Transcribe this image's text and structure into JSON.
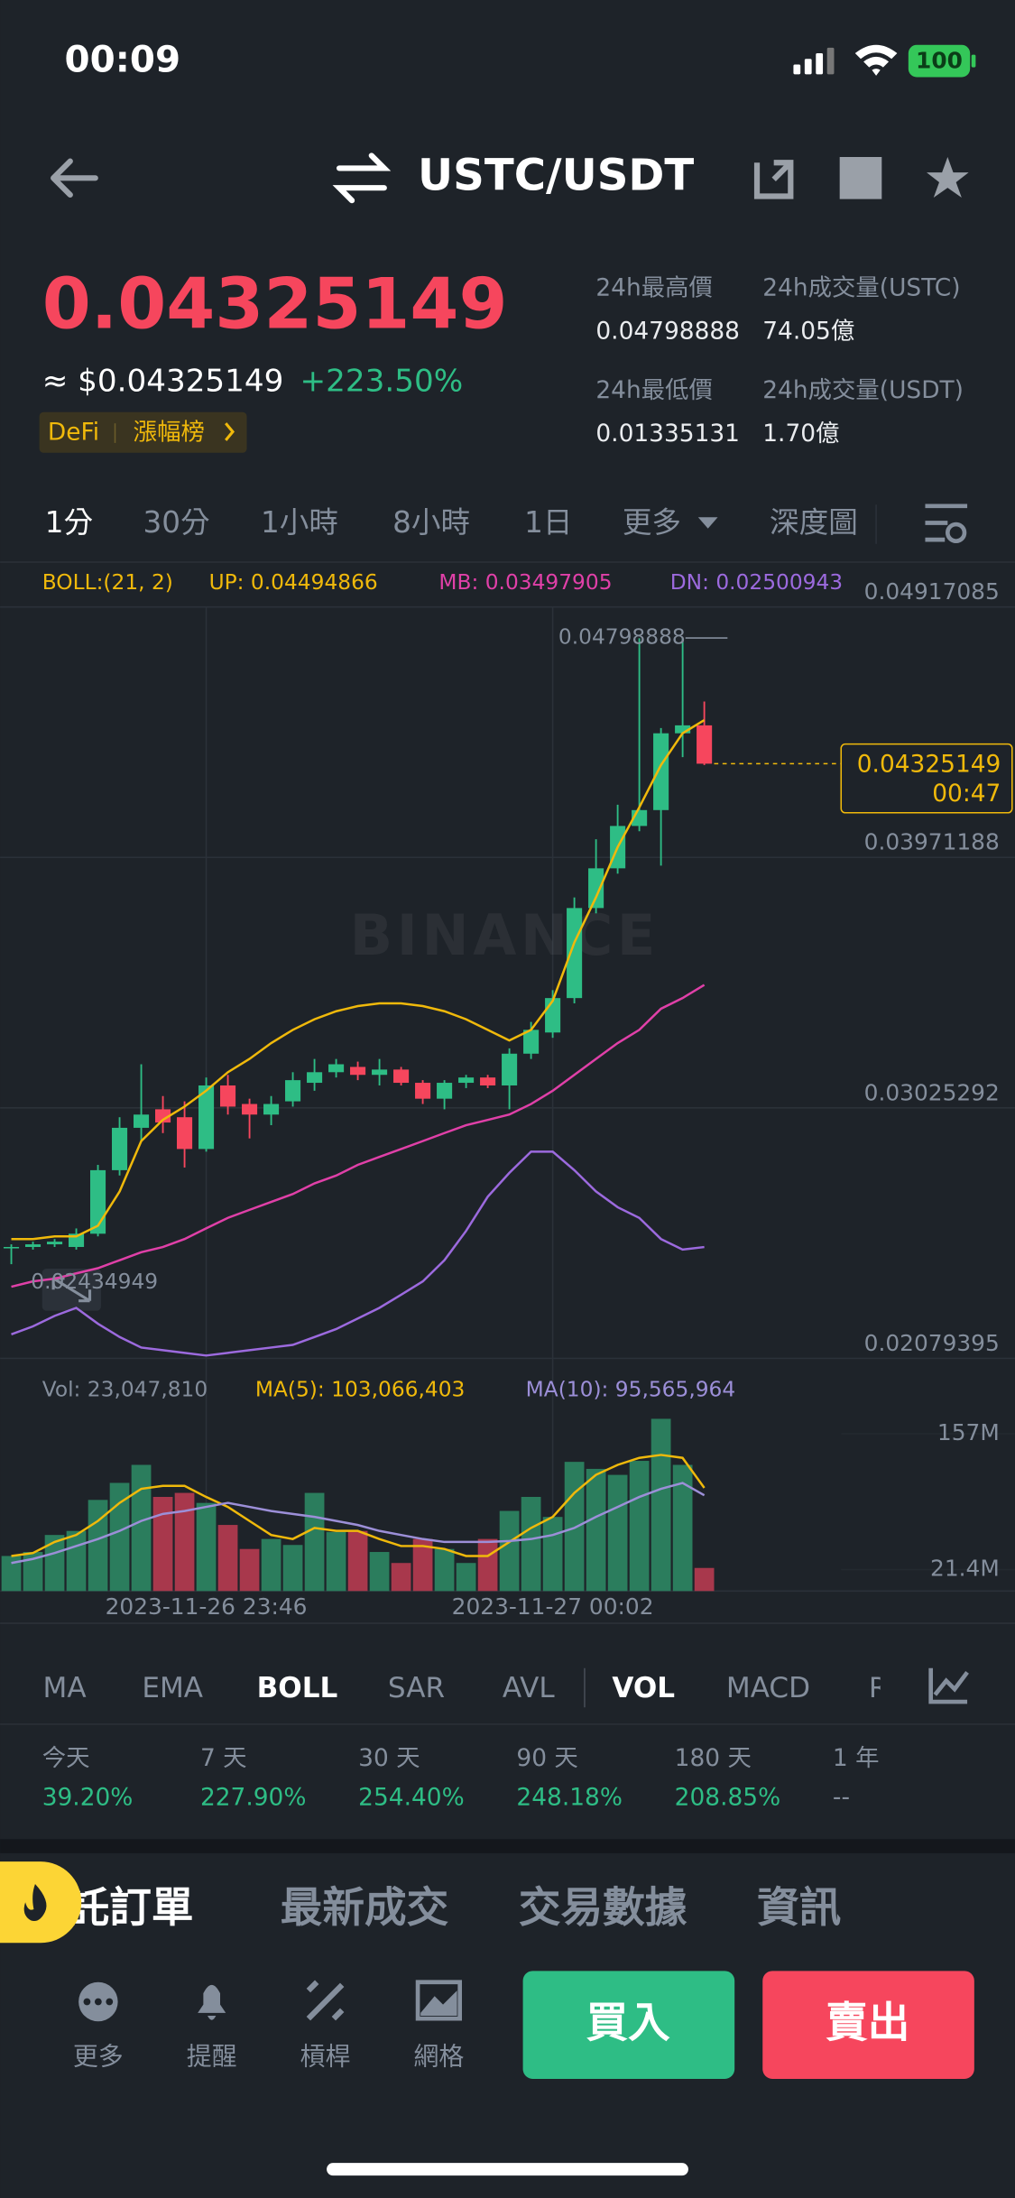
{
  "status_bar": {
    "time": "00:09",
    "battery": "100"
  },
  "header": {
    "pair": "USTC/USDT"
  },
  "ticker": {
    "price": "0.04325149",
    "fiat": "≈ $0.04325149",
    "change": "+223.50%",
    "tags": [
      "DeFi",
      "漲幅榜"
    ]
  },
  "stats": {
    "high_label": "24h最高價",
    "high": "0.04798888",
    "vol_base_label": "24h成交量(USTC)",
    "vol_base": "74.05億",
    "low_label": "24h最低價",
    "low": "0.01335131",
    "vol_quote_label": "24h成交量(USDT)",
    "vol_quote": "1.70億"
  },
  "intervals": [
    "1分",
    "30分",
    "1小時",
    "8小時",
    "1日",
    "更多",
    "深度圖"
  ],
  "chart_data": [
    {
      "type": "candlestick",
      "title": "BOLL:(21, 2)",
      "watermark": "BINANCE",
      "categories": [
        null,
        null,
        null,
        null,
        null,
        null,
        null,
        null,
        null,
        "2023-11-26 23:46",
        null,
        null,
        null,
        null,
        null,
        null,
        null,
        null,
        null,
        null,
        null,
        null,
        null,
        null,
        null,
        "2023-11-27 00:02",
        null,
        null,
        null,
        null,
        null,
        null,
        null
      ],
      "open": [
        0.02495,
        0.025,
        0.0251,
        0.025,
        0.0255,
        0.0279,
        0.0295,
        0.0302,
        0.0299,
        0.0287,
        0.0311,
        0.0304,
        0.03,
        0.0305,
        0.0312,
        0.0316,
        0.0318,
        0.0315,
        0.0317,
        0.0312,
        0.0306,
        0.0312,
        0.0314,
        0.0311,
        0.0323,
        0.0331,
        0.0344,
        0.0378,
        0.0393,
        0.0409,
        0.0415,
        0.0444,
        0.0447
      ],
      "high": [
        0.0251,
        0.0252,
        0.0253,
        0.0257,
        0.0281,
        0.0299,
        0.0319,
        0.0307,
        0.0305,
        0.0314,
        0.0315,
        0.0306,
        0.0307,
        0.0316,
        0.0321,
        0.0321,
        0.032,
        0.0321,
        0.0318,
        0.0313,
        0.0313,
        0.0315,
        0.0315,
        0.0325,
        0.0335,
        0.0347,
        0.0382,
        0.0404,
        0.0417,
        0.04798888,
        0.0446,
        0.048,
        0.0456
      ],
      "low": [
        0.02434949,
        0.0249,
        0.025,
        0.0249,
        0.0254,
        0.0277,
        0.029,
        0.0293,
        0.028,
        0.0286,
        0.03,
        0.0291,
        0.0296,
        0.0303,
        0.0309,
        0.0314,
        0.0313,
        0.0311,
        0.0311,
        0.0304,
        0.0302,
        0.031,
        0.031,
        0.0302,
        0.0321,
        0.0329,
        0.0342,
        0.0376,
        0.0391,
        0.0407,
        0.0394,
        0.0435,
        0.0432
      ],
      "close": [
        0.025,
        0.0251,
        0.0252,
        0.0255,
        0.0279,
        0.0295,
        0.03,
        0.0297,
        0.0287,
        0.0311,
        0.0303,
        0.03,
        0.0304,
        0.0313,
        0.0316,
        0.0319,
        0.0315,
        0.0317,
        0.0312,
        0.0306,
        0.0312,
        0.0314,
        0.0311,
        0.0323,
        0.0332,
        0.0344,
        0.0378,
        0.0393,
        0.0409,
        0.0415,
        0.0444,
        0.0447,
        0.04325149
      ],
      "up_color": "#2ebd85",
      "down_color": "#f6465d",
      "series": [
        {
          "name": "UP: 0.04494866",
          "color": "#f0b90b",
          "values": [
            0.0253,
            0.0253,
            0.0254,
            0.0254,
            0.0258,
            0.0271,
            0.029,
            0.0298,
            0.0303,
            0.0309,
            0.0316,
            0.0321,
            0.0327,
            0.0332,
            0.0336,
            0.0339,
            0.0341,
            0.0342,
            0.0342,
            0.0341,
            0.0339,
            0.0336,
            0.0332,
            0.0328,
            0.0332,
            0.0343,
            0.0365,
            0.0382,
            0.0401,
            0.0416,
            0.0432,
            0.0444,
            0.0449
          ]
        },
        {
          "name": "MB: 0.03497905",
          "color": "#e040a8",
          "values": [
            0.0235,
            0.0237,
            0.0238,
            0.024,
            0.0242,
            0.0245,
            0.0248,
            0.025,
            0.0253,
            0.0257,
            0.0261,
            0.0264,
            0.0267,
            0.027,
            0.0274,
            0.0277,
            0.0281,
            0.0284,
            0.0287,
            0.029,
            0.0293,
            0.0296,
            0.0298,
            0.03,
            0.0304,
            0.0309,
            0.0315,
            0.0321,
            0.0327,
            0.0332,
            0.034,
            0.0344,
            0.0349
          ]
        },
        {
          "name": "DN: 0.02500943",
          "color": "#9c6ade",
          "values": [
            0.0217,
            0.022,
            0.0224,
            0.0227,
            0.0221,
            0.0216,
            0.0212,
            0.0211,
            0.021,
            0.0209,
            0.021,
            0.0211,
            0.0212,
            0.0213,
            0.0216,
            0.0219,
            0.0223,
            0.0227,
            0.0232,
            0.0237,
            0.0245,
            0.0256,
            0.0269,
            0.0278,
            0.0286,
            0.0286,
            0.0279,
            0.0271,
            0.0265,
            0.0261,
            0.0253,
            0.0249,
            0.025
          ]
        }
      ],
      "ylim": [
        0.02079395,
        0.04917085
      ],
      "yticks": [
        0.02079395,
        0.03025292,
        0.03971188,
        0.04917085
      ],
      "annotations": {
        "high": "0.04798888",
        "low": "0.02434949",
        "last": "0.04325149",
        "countdown": "00:47"
      },
      "grid": true
    },
    {
      "type": "bar",
      "title": "Vol: 23,047,810",
      "up_color": "#2b7d5d",
      "down_color": "#a8384c",
      "values": [
        35,
        39,
        56,
        60,
        91,
        108,
        126,
        94,
        98,
        88,
        66,
        42,
        52,
        46,
        98,
        59,
        60,
        39,
        28,
        52,
        42,
        28,
        52,
        80,
        94,
        74,
        129,
        122,
        116,
        130,
        172,
        126,
        23.05
      ],
      "series": [
        {
          "name": "MA(5): 103,066,403",
          "color": "#f0b90b",
          "values": [
            35,
            38,
            49,
            56,
            70,
            88,
            102,
            105,
            105,
            94,
            84,
            70,
            56,
            52,
            63,
            60,
            60,
            52,
            45,
            45,
            42,
            35,
            35,
            49,
            63,
            74,
            98,
            116,
            126,
            133,
            136,
            133,
            103.07
          ]
        },
        {
          "name": "MA(10): 95,565,964",
          "color": "#9c8fd8",
          "values": [
            28,
            32,
            38,
            45,
            52,
            60,
            70,
            77,
            80,
            84,
            88,
            84,
            80,
            77,
            74,
            70,
            66,
            60,
            56,
            52,
            49,
            49,
            49,
            50,
            52,
            56,
            63,
            74,
            84,
            94,
            102,
            108,
            95.57
          ]
        }
      ],
      "ylim": [
        0,
        175
      ],
      "yticks": [
        {
          "value": 21.4,
          "label": "21.4M"
        },
        {
          "value": 157,
          "label": "157M"
        }
      ]
    }
  ],
  "indicators": [
    "MA",
    "EMA",
    "BOLL",
    "SAR",
    "AVL",
    "VOL",
    "MACD",
    "RSI"
  ],
  "performance": [
    {
      "label": "今天",
      "value": "39.20%"
    },
    {
      "label": "7 天",
      "value": "227.90%"
    },
    {
      "label": "30 天",
      "value": "254.40%"
    },
    {
      "label": "90 天",
      "value": "248.18%"
    },
    {
      "label": "180 天",
      "value": "208.85%"
    },
    {
      "label": "1 年",
      "value": "--"
    }
  ],
  "tabs": [
    "委託訂單",
    "最新成交",
    "交易數據",
    "資訊"
  ],
  "actions": [
    "更多",
    "提醒",
    "槓桿",
    "網格"
  ],
  "buttons": {
    "buy": "買入",
    "sell": "賣出"
  }
}
